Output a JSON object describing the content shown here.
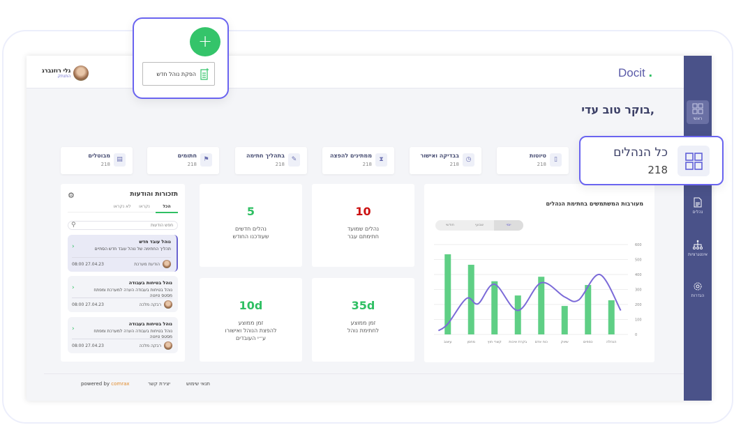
{
  "header": {
    "logo": "Docit",
    "user_name": "גלי רוזנברג",
    "user_role": "התנתק"
  },
  "greeting": ",בוקר טוב עדי",
  "sidebar": {
    "items": [
      {
        "label": "ראשי",
        "icon": "grid-icon"
      },
      {
        "label": "נהלים",
        "icon": "document-icon"
      },
      {
        "label": "אינטגרציות",
        "icon": "hierarchy-icon"
      },
      {
        "label": "הגדרות",
        "icon": "gear-icon"
      }
    ]
  },
  "stats": [
    {
      "label": "טיוטות",
      "value": "218",
      "icon": "file-icon"
    },
    {
      "label": "בבדיקה ואישור",
      "value": "218",
      "icon": "clock-icon"
    },
    {
      "label": "ממתינים להפצה",
      "value": "218",
      "icon": "hourglass-icon"
    },
    {
      "label": "בתהליך חתימה",
      "value": "218",
      "icon": "pen-icon"
    },
    {
      "label": "חתומים",
      "value": "218",
      "icon": "flag-icon"
    },
    {
      "label": "מבוטלים",
      "value": "218",
      "icon": "cancelled-doc-icon"
    }
  ],
  "callout": {
    "label": "כל הנהלים",
    "value": "218"
  },
  "popup": {
    "fab": "+",
    "tooltip": "הפקת נוהל חדש"
  },
  "kpis": [
    {
      "value": "10",
      "line1": "נהלים שמועד",
      "line2": "חתימתם עבר",
      "color": "#cc1111"
    },
    {
      "value": "5",
      "line1": "נהלים חדשים",
      "line2": "שעודכנו החודש",
      "color": "#2fbf63"
    },
    {
      "value": "35d",
      "line1": "זמן ממוצע",
      "line2": "לחתימת נוהל",
      "color": "#2fbf63"
    },
    {
      "value": "10d",
      "line1": "זמן ממוצע",
      "line2": "להפצת הנוהל ואישורו",
      "line3": "ע״י העובדים",
      "color": "#2fbf63"
    }
  ],
  "notifications": {
    "title": "תזכורות והודעות",
    "tabs": [
      "הכל",
      "נקראו",
      "לא נקראו"
    ],
    "search_placeholder": "חפש הודעות",
    "items": [
      {
        "title": "נוהל עובד חדש",
        "desc": "תהליך החתימה של נוהל עובד חדש הסתיים",
        "author": "הודעת מערכת",
        "time": "27.04.23  08:00"
      },
      {
        "title": "נוהל בטיחות בעבודה",
        "desc": "נוהל בטיחות בעבודה הערה למערכת ומפתח מסטס טיוטה",
        "author": "רבקה מלכה",
        "time": "27.04.23  08:00"
      },
      {
        "title": "נוהל בטיחות בעבודה",
        "desc": "נוהל בטיחות בעבודה הערה למערכת ומפתח מסטס טיוטה",
        "author": "רבקה מלכה",
        "time": "27.04.23  08:00"
      }
    ]
  },
  "footer": {
    "powered": "powered by ",
    "brand": "comrax",
    "contact": "יצירת קשר",
    "terms": "תנאי שימוש"
  },
  "chart_data": {
    "type": "bar",
    "title": "מעורבות המשתמשים בחתימת הנהלים",
    "segments": [
      "יומי",
      "שבועי",
      "חודשי"
    ],
    "categories": [
      "עיצוב",
      "מחסן",
      "קשרי חוץ",
      "בקרת איכות",
      "כוח אדם",
      "שיווק",
      "כספים",
      "הנהלה"
    ],
    "values": [
      535,
      465,
      355,
      260,
      385,
      190,
      330,
      228
    ],
    "line": {
      "x": [
        -0.4,
        0,
        0.8,
        1.3,
        2,
        3,
        4,
        5,
        5.6,
        6.5,
        7.4
      ],
      "y": [
        25,
        70,
        240,
        205,
        335,
        160,
        345,
        250,
        230,
        400,
        160
      ]
    },
    "ylim": [
      0,
      600
    ],
    "yticks": [
      0,
      100,
      200,
      300,
      400,
      500,
      600
    ],
    "grid": true,
    "colors": {
      "bar": "#5fcf85",
      "line": "#7b6ad8"
    }
  }
}
